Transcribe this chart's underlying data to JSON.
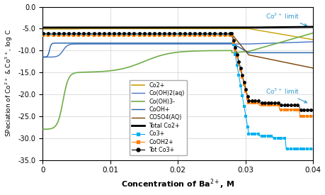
{
  "xlabel": "Concentration of Ba$^{2+}$, M",
  "ylabel": "SPeciation of Co$^{2+}$ & Co$^{3+}$, log C",
  "xlim": [
    0,
    0.04
  ],
  "ylim": [
    -35.0,
    0.0
  ],
  "yticks": [
    0.0,
    -5.0,
    -10.0,
    -15.0,
    -20.0,
    -25.0,
    -30.0,
    -35.0
  ],
  "xticks": [
    0,
    0.01,
    0.02,
    0.03,
    0.04
  ],
  "background_color": "#ffffff",
  "grid_color": "#d0d0d0",
  "co2_limit_text": "Co$^{2+}$ limit",
  "co3_limit_text": "Co$^{3+}$ limit",
  "legend_labels": [
    "Co2+",
    "Co(OH)2(aq)",
    "Co(OH)3-",
    "CoOH+",
    "COSO4(AQ)",
    "Total Co2+",
    "Co3+",
    "CoOH2+",
    "Tot Co3+"
  ]
}
